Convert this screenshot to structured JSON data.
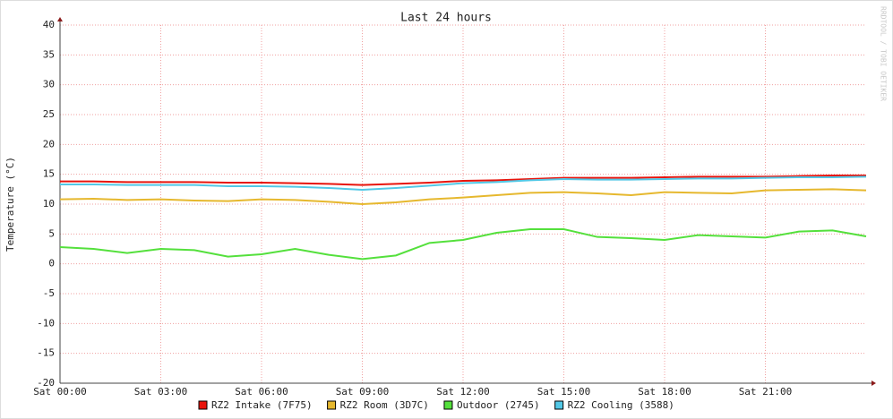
{
  "chart_data": {
    "type": "line",
    "title": "Last 24 hours",
    "y_label": "Temperature (°C)",
    "watermark": "RRDTOOL / TOBI OETIKER",
    "x": [
      0,
      1,
      2,
      3,
      4,
      5,
      6,
      7,
      8,
      9,
      10,
      11,
      12,
      13,
      14,
      15,
      16,
      17,
      18,
      19,
      20,
      21,
      22,
      23,
      24
    ],
    "xlim": [
      0,
      24
    ],
    "xticks": [
      {
        "value": 0,
        "label": "Sat 00:00"
      },
      {
        "value": 3,
        "label": "Sat 03:00"
      },
      {
        "value": 6,
        "label": "Sat 06:00"
      },
      {
        "value": 9,
        "label": "Sat 09:00"
      },
      {
        "value": 12,
        "label": "Sat 12:00"
      },
      {
        "value": 15,
        "label": "Sat 15:00"
      },
      {
        "value": 18,
        "label": "Sat 18:00"
      },
      {
        "value": 21,
        "label": "Sat 21:00"
      }
    ],
    "ylim": [
      -20,
      40
    ],
    "yticks": [
      -20,
      -15,
      -10,
      -5,
      0,
      5,
      10,
      15,
      20,
      25,
      30,
      35,
      40
    ],
    "grid": true,
    "series": [
      {
        "name": "RZ2 Intake (7F75)",
        "color": "#e8140c",
        "values": [
          13.8,
          13.8,
          13.7,
          13.7,
          13.7,
          13.6,
          13.6,
          13.5,
          13.4,
          13.2,
          13.4,
          13.6,
          13.9,
          14.0,
          14.2,
          14.4,
          14.4,
          14.4,
          14.5,
          14.6,
          14.6,
          14.6,
          14.7,
          14.8,
          14.8
        ]
      },
      {
        "name": "RZ2 Room (3D7C)",
        "color": "#e6b82e",
        "values": [
          10.8,
          10.9,
          10.7,
          10.8,
          10.6,
          10.5,
          10.8,
          10.7,
          10.4,
          10.0,
          10.3,
          10.8,
          11.1,
          11.5,
          11.9,
          12.0,
          11.8,
          11.5,
          12.0,
          11.9,
          11.8,
          12.3,
          12.4,
          12.5,
          12.3
        ]
      },
      {
        "name": "Outdoor (2745)",
        "color": "#54e03c",
        "values": [
          2.8,
          2.5,
          1.8,
          2.5,
          2.3,
          1.2,
          1.6,
          2.5,
          1.5,
          0.8,
          1.4,
          3.5,
          4.0,
          5.2,
          5.8,
          5.8,
          4.5,
          4.3,
          4.0,
          4.8,
          4.6,
          4.4,
          5.4,
          5.6,
          4.6
        ]
      },
      {
        "name": "RZ2 Cooling (3588)",
        "color": "#52c8e6",
        "values": [
          13.3,
          13.3,
          13.2,
          13.2,
          13.2,
          13.0,
          13.0,
          12.9,
          12.7,
          12.4,
          12.7,
          13.1,
          13.5,
          13.7,
          14.0,
          14.2,
          14.1,
          14.1,
          14.2,
          14.3,
          14.3,
          14.4,
          14.5,
          14.5,
          14.6
        ]
      }
    ]
  }
}
